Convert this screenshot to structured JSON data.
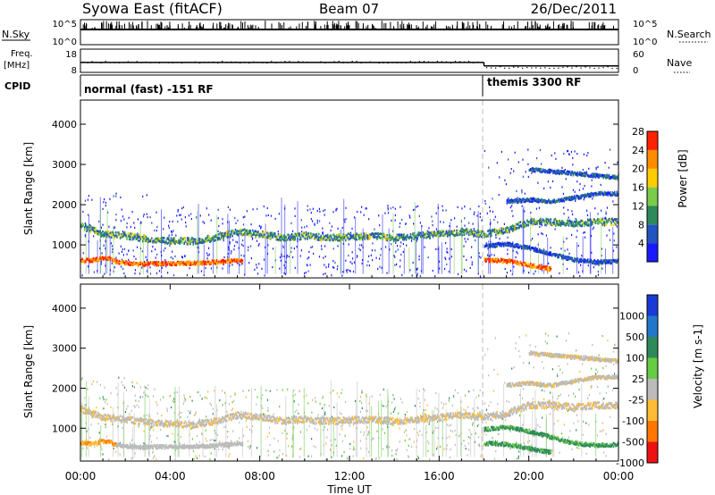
{
  "header": {
    "site": "Syowa East (fitACF)",
    "beam": "Beam 07",
    "date": "26/Dec/2011"
  },
  "param_panels": {
    "nsky_label": "N.Sky",
    "nsky_ticks": [
      "10^5",
      "10^0"
    ],
    "nsearch_label": "N.Search",
    "nsearch_ticks": [
      "10^5",
      "10^0"
    ],
    "freq_label_top": "Freq.",
    "freq_label_bottom": "[MHz]",
    "freq_ticks": [
      "18",
      "8"
    ],
    "nave_label": "Nave",
    "nave_ticks": [
      "60",
      "0"
    ],
    "cpid_label": "CPID",
    "cpid_segments": [
      {
        "label": "normal (fast) -151 RF",
        "start_hour": 0,
        "end_hour": 18
      },
      {
        "label": "themis 3300 RF",
        "start_hour": 18,
        "end_hour": 24
      }
    ],
    "freq_mhz": [
      {
        "start_hour": 0,
        "end_hour": 18,
        "value": 12.3
      },
      {
        "start_hour": 18,
        "end_hour": 24,
        "value": 10.8
      }
    ]
  },
  "chart_data": [
    {
      "type": "heatmap",
      "panel": "power",
      "ylabel": "Slant Range [km]",
      "xlabel": "",
      "xlim": [
        0,
        24
      ],
      "ylim": [
        180,
        4600
      ],
      "yticks": [
        1000,
        2000,
        3000,
        4000
      ],
      "colorbar_label": "Power [dB]",
      "colorbar_ticks": [
        "4",
        "8",
        "12",
        "16",
        "20",
        "24",
        "28"
      ],
      "colors": [
        "#1a1aff",
        "#2255c0",
        "#2e8a5a",
        "#7acc4a",
        "#ffcc00",
        "#ff8c00",
        "#ff2200"
      ],
      "features": [
        {
          "name": "lower-band",
          "points": [
            [
              0.0,
              650
            ],
            [
              0.5,
              640
            ],
            [
              1.0,
              700
            ],
            [
              1.3,
              680
            ],
            [
              1.6,
              600
            ],
            [
              2.0,
              580
            ],
            [
              2.5,
              550
            ],
            [
              3.5,
              560
            ],
            [
              4.5,
              570
            ],
            [
              5.5,
              580
            ],
            [
              6.5,
              620
            ],
            [
              7.2,
              640
            ]
          ]
        },
        {
          "name": "main-band",
          "points": [
            [
              0.0,
              1500
            ],
            [
              1.0,
              1300
            ],
            [
              2.0,
              1250
            ],
            [
              3.0,
              1180
            ],
            [
              4.0,
              1130
            ],
            [
              5.0,
              1120
            ],
            [
              6.0,
              1200
            ],
            [
              7.0,
              1350
            ],
            [
              8.0,
              1300
            ],
            [
              9.0,
              1200
            ],
            [
              10.0,
              1250
            ],
            [
              11.0,
              1200
            ],
            [
              12.0,
              1230
            ],
            [
              13.0,
              1250
            ],
            [
              14.0,
              1200
            ],
            [
              15.0,
              1250
            ],
            [
              16.0,
              1300
            ],
            [
              17.0,
              1350
            ],
            [
              18.0,
              1300
            ],
            [
              19.0,
              1400
            ],
            [
              20.0,
              1600
            ],
            [
              21.0,
              1600
            ],
            [
              22.0,
              1550
            ],
            [
              23.0,
              1600
            ],
            [
              24.0,
              1600
            ]
          ]
        },
        {
          "name": "late-low-band",
          "points": [
            [
              18.0,
              650
            ],
            [
              18.5,
              640
            ],
            [
              19.0,
              620
            ],
            [
              19.5,
              580
            ],
            [
              20.0,
              520
            ],
            [
              20.5,
              470
            ],
            [
              21.0,
              420
            ]
          ]
        },
        {
          "name": "late-mid-band",
          "points": [
            [
              18.0,
              1000
            ],
            [
              19.0,
              1050
            ],
            [
              20.0,
              950
            ],
            [
              21.0,
              800
            ],
            [
              22.0,
              650
            ],
            [
              23.0,
              600
            ],
            [
              24.0,
              620
            ]
          ]
        },
        {
          "name": "late-high-band",
          "points": [
            [
              19.0,
              2100
            ],
            [
              20.0,
              2150
            ],
            [
              21.0,
              2100
            ],
            [
              22.0,
              2200
            ],
            [
              23.0,
              2300
            ],
            [
              24.0,
              2300
            ]
          ]
        },
        {
          "name": "late-top-band",
          "points": [
            [
              20.0,
              2900
            ],
            [
              21.0,
              2850
            ],
            [
              22.0,
              2800
            ],
            [
              23.0,
              2750
            ],
            [
              24.0,
              2700
            ]
          ]
        }
      ]
    },
    {
      "type": "heatmap",
      "panel": "velocity",
      "ylabel": "Slant Range [km]",
      "xlabel": "Time UT",
      "xlim": [
        0,
        24
      ],
      "ylim": [
        180,
        4600
      ],
      "yticks": [
        1000,
        2000,
        3000,
        4000
      ],
      "xticks": [
        "00:00",
        "04:00",
        "08:00",
        "12:00",
        "16:00",
        "20:00",
        "00:00"
      ],
      "colorbar_label": "Velocity [m s-1]",
      "colorbar_ticks": [
        "1000",
        "500",
        "100",
        "25",
        "-25",
        "-100",
        "-500",
        "-1000"
      ],
      "colors": [
        "#1a3ad8",
        "#2277cc",
        "#2e8a5a",
        "#66cc44",
        "#bbbbbb",
        "#ffbb33",
        "#ff7700",
        "#ee1111"
      ],
      "features": [
        {
          "name": "lower-band",
          "points": [
            [
              0.0,
              650
            ],
            [
              0.5,
              640
            ],
            [
              1.0,
              700
            ],
            [
              1.3,
              680
            ],
            [
              1.6,
              600
            ],
            [
              2.0,
              580
            ],
            [
              2.5,
              550
            ],
            [
              3.5,
              560
            ],
            [
              4.5,
              570
            ],
            [
              5.5,
              580
            ],
            [
              6.5,
              620
            ],
            [
              7.2,
              640
            ]
          ]
        },
        {
          "name": "main-band",
          "points": [
            [
              0.0,
              1500
            ],
            [
              1.0,
              1300
            ],
            [
              2.0,
              1250
            ],
            [
              3.0,
              1180
            ],
            [
              4.0,
              1130
            ],
            [
              5.0,
              1120
            ],
            [
              6.0,
              1200
            ],
            [
              7.0,
              1350
            ],
            [
              8.0,
              1300
            ],
            [
              9.0,
              1200
            ],
            [
              10.0,
              1250
            ],
            [
              11.0,
              1200
            ],
            [
              12.0,
              1230
            ],
            [
              13.0,
              1250
            ],
            [
              14.0,
              1200
            ],
            [
              15.0,
              1250
            ],
            [
              16.0,
              1300
            ],
            [
              17.0,
              1350
            ],
            [
              18.0,
              1300
            ],
            [
              19.0,
              1400
            ],
            [
              20.0,
              1600
            ],
            [
              21.0,
              1600
            ],
            [
              22.0,
              1550
            ],
            [
              23.0,
              1600
            ],
            [
              24.0,
              1600
            ]
          ]
        },
        {
          "name": "late-low-band",
          "points": [
            [
              18.0,
              650
            ],
            [
              18.5,
              640
            ],
            [
              19.0,
              620
            ],
            [
              19.5,
              580
            ],
            [
              20.0,
              520
            ],
            [
              20.5,
              470
            ],
            [
              21.0,
              420
            ]
          ]
        },
        {
          "name": "late-mid-band",
          "points": [
            [
              18.0,
              1000
            ],
            [
              19.0,
              1050
            ],
            [
              20.0,
              950
            ],
            [
              21.0,
              800
            ],
            [
              22.0,
              650
            ],
            [
              23.0,
              600
            ],
            [
              24.0,
              620
            ]
          ]
        },
        {
          "name": "late-high-band",
          "points": [
            [
              19.0,
              2100
            ],
            [
              20.0,
              2150
            ],
            [
              21.0,
              2100
            ],
            [
              22.0,
              2200
            ],
            [
              23.0,
              2300
            ],
            [
              24.0,
              2300
            ]
          ]
        },
        {
          "name": "late-top-band",
          "points": [
            [
              20.0,
              2900
            ],
            [
              21.0,
              2850
            ],
            [
              22.0,
              2800
            ],
            [
              23.0,
              2750
            ],
            [
              24.0,
              2700
            ]
          ]
        }
      ]
    }
  ]
}
